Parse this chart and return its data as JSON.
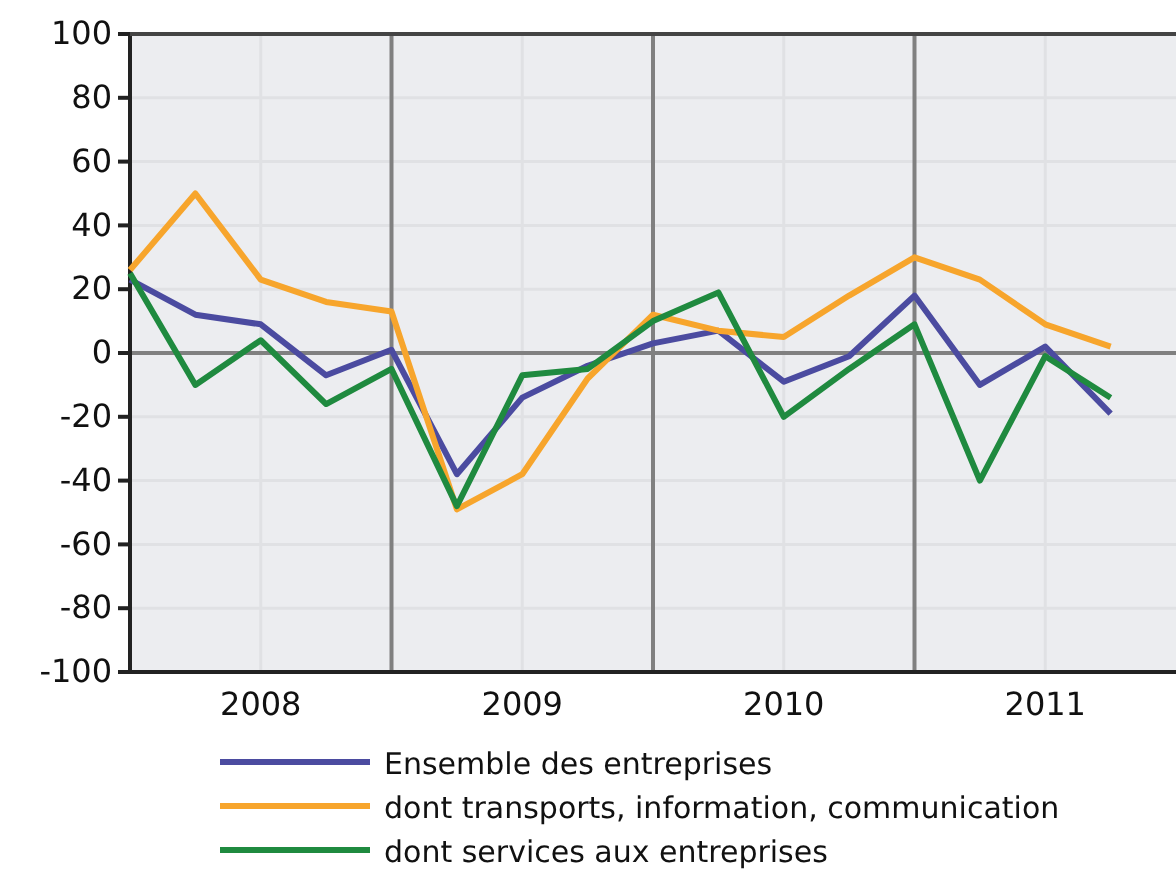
{
  "chart_data": {
    "type": "line",
    "x": [
      2008,
      2008.25,
      2008.5,
      2008.75,
      2009,
      2009.25,
      2009.5,
      2009.75,
      2010,
      2010.25,
      2010.5,
      2010.75,
      2011,
      2011.25,
      2011.5,
      2011.75
    ],
    "xlim": [
      2008,
      2012
    ],
    "xticks": [
      {
        "value": 2008.5,
        "label": "2008"
      },
      {
        "value": 2009.5,
        "label": "2009"
      },
      {
        "value": 2010.5,
        "label": "2010"
      },
      {
        "value": 2011.5,
        "label": "2011"
      }
    ],
    "ylim": [
      -100,
      100
    ],
    "yticks": [
      -100,
      -80,
      -60,
      -40,
      -20,
      0,
      20,
      40,
      60,
      80,
      100
    ],
    "grid": true,
    "legend": "bottom",
    "line_style": "solid",
    "marker": "none",
    "ref_lines": [
      {
        "axis": "x",
        "value": 2009,
        "color": "#808080"
      },
      {
        "axis": "x",
        "value": 2010,
        "color": "#808080"
      },
      {
        "axis": "x",
        "value": 2011,
        "color": "#808080"
      },
      {
        "axis": "y",
        "value": 0,
        "color": "#808080"
      }
    ],
    "series": [
      {
        "name": "Ensemble des entreprises",
        "color": "#4b4ba0",
        "values": [
          23,
          12,
          9,
          -7,
          1,
          -38,
          -14,
          -4,
          3,
          7,
          -9,
          -1,
          18,
          -10,
          2,
          -19
        ]
      },
      {
        "name": "dont transports, information, communication",
        "color": "#f7a52c",
        "values": [
          26,
          50,
          23,
          16,
          13,
          -49,
          -38,
          -8,
          12,
          7,
          5,
          18,
          30,
          23,
          9,
          2
        ]
      },
      {
        "name": "dont services aux entreprises",
        "color": "#1f8a3f",
        "values": [
          25,
          -10,
          4,
          -16,
          -5,
          -48,
          -7,
          -5,
          10,
          19,
          -20,
          -5,
          9,
          -40,
          -1,
          -14
        ]
      }
    ]
  }
}
